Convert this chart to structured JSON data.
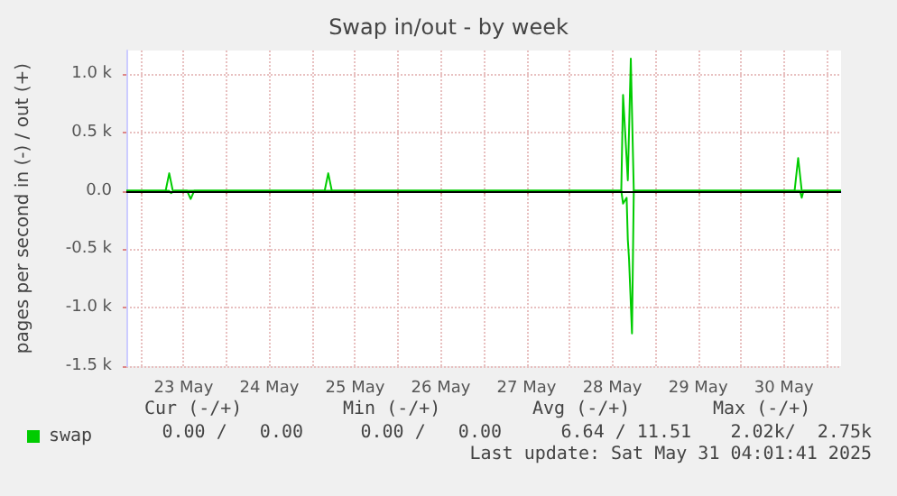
{
  "chart_data": {
    "type": "line",
    "title": "Swap in/out - by week",
    "ylabel": "pages per second in (-) / out (+)",
    "series": [
      {
        "name": "swap",
        "color": "#00cc00",
        "x": [
          "2025-05-22T20:00",
          "2025-05-23T07:00",
          "2025-05-23T08:00",
          "2025-05-23T09:00",
          "2025-05-25T03:30",
          "2025-05-25T04:30",
          "2025-05-25T05:30",
          "2025-05-28T14:30",
          "2025-05-28T15:00",
          "2025-05-28T16:20",
          "2025-05-28T17:10",
          "2025-05-28T18:00",
          "2025-05-30T15:00",
          "2025-05-30T16:00",
          "2025-05-30T17:00",
          "2025-05-31T04:00"
        ],
        "values": [
          0,
          0,
          150,
          0,
          0,
          150,
          0,
          0,
          820,
          90,
          1130,
          0,
          0,
          280,
          0,
          0
        ]
      },
      {
        "color": "#00cc00",
        "x": [
          "2025-05-22T20:00",
          "2025-05-23T08:00",
          "2025-05-23T08:30",
          "2025-05-23T09:30",
          "2025-05-23T13:00",
          "2025-05-23T14:00",
          "2025-05-23T15:00",
          "2025-05-28T14:30",
          "2025-05-28T15:00",
          "2025-05-28T16:00",
          "2025-05-28T16:20",
          "2025-05-28T16:40",
          "2025-05-28T17:30",
          "2025-05-28T18:00",
          "2025-05-30T16:30",
          "2025-05-30T17:00",
          "2025-05-30T17:30",
          "2025-05-31T04:00"
        ],
        "values": [
          0,
          0,
          -20,
          0,
          0,
          -70,
          0,
          0,
          -110,
          -60,
          -420,
          -580,
          -1220,
          0,
          0,
          -60,
          0,
          0
        ]
      }
    ],
    "xlim": [
      "2025-05-22T20:00",
      "2025-05-31T04:00"
    ],
    "xticks": [
      {
        "value": "2025-05-23",
        "label": null
      },
      {
        "value": "2025-05-23T12:00",
        "label": "23 May"
      },
      {
        "value": "2025-05-24",
        "label": null
      },
      {
        "value": "2025-05-24T12:00",
        "label": "24 May"
      },
      {
        "value": "2025-05-25",
        "label": null
      },
      {
        "value": "2025-05-25T12:00",
        "label": "25 May"
      },
      {
        "value": "2025-05-26",
        "label": null
      },
      {
        "value": "2025-05-26T12:00",
        "label": "26 May"
      },
      {
        "value": "2025-05-27",
        "label": null
      },
      {
        "value": "2025-05-27T12:00",
        "label": "27 May"
      },
      {
        "value": "2025-05-28",
        "label": null
      },
      {
        "value": "2025-05-28T12:00",
        "label": "28 May"
      },
      {
        "value": "2025-05-29",
        "label": null
      },
      {
        "value": "2025-05-29T12:00",
        "label": "29 May"
      },
      {
        "value": "2025-05-30",
        "label": null
      },
      {
        "value": "2025-05-30T12:00",
        "label": "30 May"
      },
      {
        "value": "2025-05-31",
        "label": null
      }
    ],
    "ylim": [
      -1500,
      1200
    ],
    "yticks": [
      {
        "value": -1500,
        "label": "-1.5 k"
      },
      {
        "value": -1000,
        "label": "-1.0 k"
      },
      {
        "value": -500,
        "label": "-0.5 k"
      },
      {
        "value": 0,
        "label": "0.0"
      },
      {
        "value": 500,
        "label": "0.5 k"
      },
      {
        "value": 1000,
        "label": "1.0 k"
      }
    ],
    "ref_lines": [
      {
        "axis": "y",
        "value": 0,
        "color": "#000000"
      }
    ],
    "grid": true,
    "legend": "bottom left",
    "marker": "none",
    "line_style": "solid",
    "annotations": [
      "Cur (-/+)",
      "Min (-/+)",
      "Avg (-/+)",
      "Max (-/+)",
      "0.00 /   0.00",
      "0.00 /   0.00",
      "6.64 / 11.51",
      "2.02k/  2.75k",
      "Last update: Sat May 31 04:01:41 2025"
    ]
  }
}
